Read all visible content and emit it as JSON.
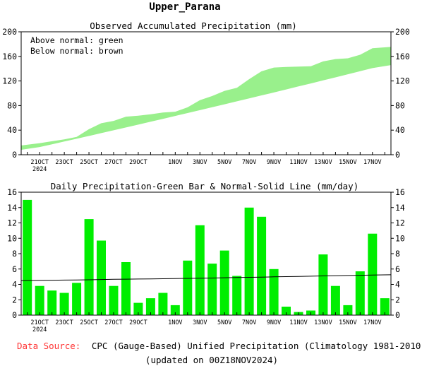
{
  "page": {
    "title": "Upper_Parana",
    "source_label": "Data Source:",
    "source_text": "CPC (Gauge-Based) Unified Precipitation (Climatology 1981-2010)",
    "updated": "(updated on 00Z18NOV2024)"
  },
  "colors": {
    "bar": "#00ee00",
    "band": "#99f08c",
    "source_label": "#ff3333",
    "axis": "#000000"
  },
  "chart_data": [
    {
      "type": "area",
      "title": "Observed Accumulated Precipitation (mm)",
      "annotations": [
        "Above normal: green",
        "Below normal: brown"
      ],
      "xlabel": "",
      "ylabel": "",
      "ylim": [
        0,
        200
      ],
      "yticks": [
        "0",
        "40",
        "80",
        "120",
        "160",
        "200"
      ],
      "x_tick_labels": [
        "21OCT",
        "23OCT",
        "25OCT",
        "27OCT",
        "29OCT",
        "1NOV",
        "3NOV",
        "5NOV",
        "7NOV",
        "9NOV",
        "11NOV",
        "13NOV",
        "15NOV",
        "17NOV"
      ],
      "x_year_label": "2024",
      "x_dates": [
        "20OCT",
        "21OCT",
        "22OCT",
        "23OCT",
        "24OCT",
        "25OCT",
        "26OCT",
        "27OCT",
        "28OCT",
        "29OCT",
        "30OCT",
        "31OCT",
        "1NOV",
        "2NOV",
        "3NOV",
        "4NOV",
        "5NOV",
        "6NOV",
        "7NOV",
        "8NOV",
        "9NOV",
        "10NOV",
        "11NOV",
        "12NOV",
        "13NOV",
        "14NOV",
        "15NOV",
        "16NOV",
        "17NOV",
        "18NOV"
      ],
      "series": [
        {
          "name": "observed",
          "values": [
            15,
            18.8,
            22,
            24.9,
            29.1,
            41.6,
            51.3,
            55.1,
            62,
            63.6,
            65.8,
            68.7,
            70,
            77.1,
            88.8,
            95.5,
            103.9,
            109,
            123,
            135.8,
            141.8,
            142.9,
            143.3,
            143.9,
            151.8,
            155.6,
            156.9,
            162.6,
            173.2,
            175.4
          ]
        },
        {
          "name": "normal",
          "values": [
            8,
            12.5,
            17,
            21.5,
            26,
            30.6,
            35.2,
            39.8,
            44.4,
            49,
            53.7,
            58.4,
            63.1,
            67.8,
            72.5,
            77.3,
            82.1,
            86.9,
            91.7,
            96.5,
            101.3,
            106.2,
            111.1,
            116,
            120.9,
            125.9,
            130.9,
            135.9,
            140.9,
            145.9
          ]
        }
      ]
    },
    {
      "type": "bar",
      "title": "Daily Precipitation-Green Bar & Normal-Solid Line (mm/day)",
      "xlabel": "",
      "ylabel": "",
      "ylim": [
        0,
        16
      ],
      "yticks": [
        "0",
        "2",
        "4",
        "6",
        "8",
        "10",
        "12",
        "14",
        "16"
      ],
      "x_tick_labels": [
        "21OCT",
        "23OCT",
        "25OCT",
        "27OCT",
        "29OCT",
        "1NOV",
        "3NOV",
        "5NOV",
        "7NOV",
        "9NOV",
        "11NOV",
        "13NOV",
        "15NOV",
        "17NOV"
      ],
      "x_year_label": "2024",
      "categories": [
        "20OCT",
        "21OCT",
        "22OCT",
        "23OCT",
        "24OCT",
        "25OCT",
        "26OCT",
        "27OCT",
        "28OCT",
        "29OCT",
        "30OCT",
        "31OCT",
        "1NOV",
        "2NOV",
        "3NOV",
        "4NOV",
        "5NOV",
        "6NOV",
        "7NOV",
        "8NOV",
        "9NOV",
        "10NOV",
        "11NOV",
        "12NOV",
        "13NOV",
        "14NOV",
        "15NOV",
        "16NOV",
        "17NOV",
        "18NOV"
      ],
      "series": [
        {
          "name": "daily",
          "values": [
            15,
            3.8,
            3.2,
            2.9,
            4.2,
            12.5,
            9.7,
            3.8,
            6.9,
            1.6,
            2.2,
            2.9,
            1.3,
            7.1,
            11.7,
            6.7,
            8.4,
            5.1,
            14,
            12.8,
            6,
            1.1,
            0.4,
            0.6,
            7.9,
            3.8,
            1.3,
            5.7,
            10.6,
            2.2
          ]
        },
        {
          "name": "normal",
          "values": [
            4.5,
            4.52,
            4.54,
            4.56,
            4.58,
            4.6,
            4.63,
            4.66,
            4.68,
            4.7,
            4.72,
            4.74,
            4.76,
            4.78,
            4.8,
            4.83,
            4.86,
            4.89,
            4.92,
            4.95,
            4.98,
            5.01,
            5.04,
            5.07,
            5.1,
            5.13,
            5.16,
            5.19,
            5.22,
            5.25
          ]
        }
      ]
    }
  ]
}
